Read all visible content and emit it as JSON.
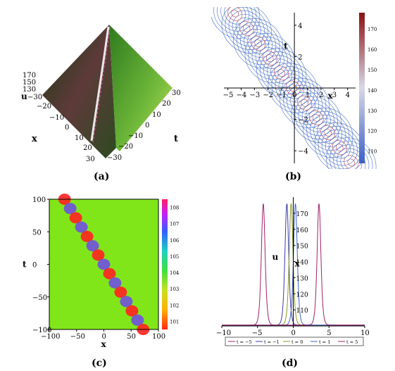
{
  "captions": {
    "a": "(a)",
    "b": "(b)",
    "c": "(c)",
    "d": "(d)"
  },
  "panel_a": {
    "z_ticks": [
      "170",
      "150",
      "130"
    ],
    "zlabel": "u",
    "x_ticks": [
      "−30",
      "−20",
      "−10",
      "0",
      "10",
      "20",
      "30"
    ],
    "xlabel": "x",
    "t_ticks": [
      "30",
      "20",
      "10",
      "0",
      "−10",
      "−20",
      "−30"
    ],
    "tlabel": "t"
  },
  "chart_data": [
    {
      "type": "surface3d",
      "panel": "a",
      "xlabel": "x",
      "ylabel": "t",
      "zlabel": "u",
      "xlim": [
        -30,
        30
      ],
      "tlim": [
        -30,
        30
      ],
      "z_ticks": [
        130,
        150,
        170
      ],
      "colors": {
        "low": "#3b7a2a",
        "mid": "#a6d26a",
        "high": "#c8e04a"
      }
    },
    {
      "type": "contour",
      "panel": "b",
      "xlabel": "x",
      "ylabel": "t",
      "x_ticks": [
        -5,
        -4,
        -3,
        -2,
        -1,
        0,
        1,
        2,
        3,
        4
      ],
      "y_ticks": [
        -4,
        -2,
        2,
        4
      ],
      "xlim": [
        -5.3,
        4.6
      ],
      "ylim": [
        -4.8,
        4.8
      ],
      "colorbar_ticks": [
        110,
        120,
        130,
        140,
        150,
        160,
        170
      ],
      "colorbar_range": [
        104,
        178
      ],
      "colors": {
        "low": "#3b5fc4",
        "mid": "#d8d8e8",
        "high": "#8b1010"
      }
    },
    {
      "type": "heatmap",
      "panel": "c",
      "xlabel": "x",
      "ylabel": "t",
      "x_ticks": [
        -100,
        -50,
        0,
        50,
        100
      ],
      "y_ticks": [
        100,
        50,
        0,
        -50,
        -100
      ],
      "xlim": [
        -100,
        100
      ],
      "ylim": [
        -100,
        100
      ],
      "colorbar_ticks": [
        101,
        102,
        103,
        104,
        105,
        106,
        107,
        108
      ],
      "colorbar_range": [
        100.5,
        108.5
      ],
      "background_color": "#80e61a",
      "colors": {
        "peak": "#ff2020",
        "valley": "#7050e0"
      }
    },
    {
      "type": "line",
      "panel": "d",
      "xlabel": "x",
      "ylabel": "u",
      "x_ticks": [
        -10,
        -5,
        0,
        5,
        10
      ],
      "y_ticks": [
        110,
        120,
        130,
        140,
        150,
        160,
        170
      ],
      "xlim": [
        -10,
        10
      ],
      "ylim": [
        100,
        180
      ],
      "series": [
        {
          "name": "t = −5",
          "color": "#a0206a",
          "peak_x": -4.2,
          "peak_u": 176
        },
        {
          "name": "t = −1",
          "color": "#3a3aa8",
          "peak_x": -0.9,
          "peak_u": 176
        },
        {
          "name": "t = 0",
          "color": "#8a9a20",
          "peak_x": -0.3,
          "peak_u": 176
        },
        {
          "name": "t = 1",
          "color": "#4060c0",
          "peak_x": 0.3,
          "peak_u": 176
        },
        {
          "name": "t = 5",
          "color": "#a0206a",
          "peak_x": 3.6,
          "peak_u": 176
        }
      ]
    }
  ]
}
